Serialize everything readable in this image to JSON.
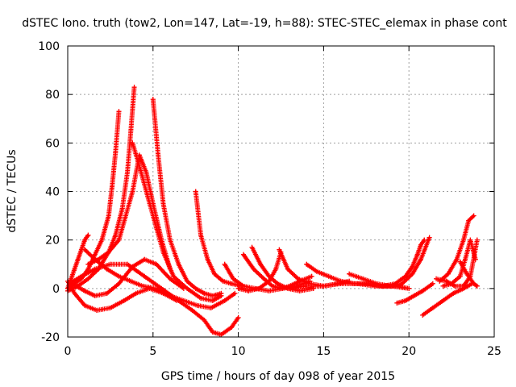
{
  "chart_data": {
    "type": "scatter",
    "title": "dSTEC Iono. truth (tow2, Lon=147, Lat=-19, h=88): STEC-STEC_elemax in phase cont",
    "xlabel": "GPS time / hours of day 098 of year 2015",
    "ylabel": "dSTEC  / TECUs",
    "xlim": [
      0,
      25
    ],
    "ylim": [
      -20,
      100
    ],
    "xticks": [
      "0",
      "5",
      "10",
      "15",
      "20",
      "25"
    ],
    "yticks": [
      "-20",
      "0",
      "20",
      "40",
      "60",
      "80",
      "100"
    ],
    "grid": true,
    "legend": "none",
    "marker": "+",
    "color": "#ff0000",
    "series": [
      {
        "x": [
          0.0,
          0.2,
          0.4,
          0.6,
          0.8,
          1.0,
          1.2
        ],
        "y": [
          0,
          4,
          8,
          12,
          16,
          20,
          22
        ]
      },
      {
        "x": [
          0.0,
          0.4,
          0.8,
          1.2,
          1.6,
          2.0,
          2.4,
          2.6,
          2.8,
          3.0
        ],
        "y": [
          0,
          2,
          4,
          8,
          14,
          20,
          30,
          42,
          56,
          73
        ]
      },
      {
        "x": [
          0.0,
          0.6,
          1.2,
          1.8,
          2.4,
          2.8,
          3.2,
          3.5,
          3.7,
          3.9
        ],
        "y": [
          -1,
          1,
          4,
          8,
          15,
          22,
          33,
          48,
          65,
          83
        ]
      },
      {
        "x": [
          1.2,
          1.8,
          2.4,
          3.0,
          3.4,
          3.8,
          4.2,
          4.6,
          5.0,
          5.5,
          6.0
        ],
        "y": [
          10,
          12,
          15,
          20,
          30,
          40,
          55,
          48,
          35,
          20,
          8
        ]
      },
      {
        "x": [
          5.0,
          5.3,
          5.6,
          6.0,
          6.5,
          7.0,
          7.5,
          8.0,
          8.5,
          9.0
        ],
        "y": [
          78,
          55,
          35,
          20,
          10,
          3,
          0,
          -2,
          -3,
          -2
        ]
      },
      {
        "x": [
          3.8,
          4.3,
          4.8,
          5.2,
          5.6,
          6.2,
          7.0,
          7.8,
          8.5,
          9.0
        ],
        "y": [
          60,
          48,
          35,
          25,
          15,
          5,
          0,
          -4,
          -5,
          -3
        ]
      },
      {
        "x": [
          0.0,
          0.4,
          1.0,
          1.7,
          2.5,
          3.3,
          4.0,
          4.8,
          5.6,
          6.4
        ],
        "y": [
          3,
          -2,
          -7,
          -9,
          -8,
          -5,
          -2,
          0,
          -2,
          -5
        ]
      },
      {
        "x": [
          0.1,
          0.8,
          1.6,
          2.5,
          3.5,
          4.5,
          5.5,
          6.5,
          7.3,
          8.0,
          8.5,
          9.0,
          9.6,
          10.0
        ],
        "y": [
          2,
          5,
          8,
          10,
          10,
          5,
          0,
          -5,
          -9,
          -13,
          -18,
          -19,
          -16,
          -12
        ]
      },
      {
        "x": [
          1.0,
          1.6,
          2.3,
          3.0,
          3.7,
          4.4,
          5.2,
          6.0,
          6.8,
          7.6,
          8.4,
          9.2,
          9.8
        ],
        "y": [
          16,
          12,
          8,
          5,
          3,
          1,
          0,
          -3,
          -5,
          -7,
          -8,
          -5,
          -2
        ]
      },
      {
        "x": [
          0.5,
          1.0,
          1.6,
          2.3,
          3.0,
          3.8,
          4.5,
          5.2,
          6.0,
          6.8
        ],
        "y": [
          1,
          -1,
          -3,
          -2,
          2,
          9,
          12,
          10,
          4,
          0
        ]
      },
      {
        "x": [
          7.5,
          7.8,
          8.2,
          8.6,
          9.1,
          9.6,
          10.2
        ],
        "y": [
          40,
          22,
          12,
          6,
          3,
          2,
          1
        ]
      },
      {
        "x": [
          9.2,
          9.7,
          10.3,
          11.0,
          11.8,
          12.6,
          13.4,
          14.2
        ],
        "y": [
          10,
          4,
          1,
          0,
          -1,
          0,
          1,
          3
        ]
      },
      {
        "x": [
          10.8,
          11.3,
          11.8,
          12.3,
          12.9,
          13.6,
          14.4
        ],
        "y": [
          17,
          10,
          5,
          2,
          0,
          -1,
          0
        ]
      },
      {
        "x": [
          10.3,
          10.9,
          11.5,
          12.0,
          12.5,
          13.0,
          13.6,
          14.3
        ],
        "y": [
          14,
          8,
          4,
          1,
          0,
          1,
          3,
          5
        ]
      },
      {
        "x": [
          10.0,
          10.6,
          11.2,
          11.8,
          12.2,
          12.5
        ],
        "y": [
          0,
          -1,
          0,
          3,
          8,
          15
        ]
      },
      {
        "x": [
          12.4,
          12.9,
          13.5,
          14.2,
          15.0,
          15.8,
          16.5
        ],
        "y": [
          16,
          8,
          4,
          2,
          1,
          2,
          3
        ]
      },
      {
        "x": [
          14.0,
          14.6,
          15.3,
          16.0,
          16.8,
          17.6,
          18.4,
          19.2,
          20.0
        ],
        "y": [
          10,
          7,
          5,
          3,
          2,
          2,
          1,
          1,
          0
        ]
      },
      {
        "x": [
          13.0,
          14.0,
          15.0,
          16.0,
          17.0,
          18.0,
          19.0,
          20.0
        ],
        "y": [
          0,
          1,
          1,
          2,
          2,
          1,
          1,
          0
        ]
      },
      {
        "x": [
          16.5,
          17.3,
          18.1,
          18.9,
          19.6,
          20.2,
          20.7,
          21.2
        ],
        "y": [
          6,
          4,
          2,
          1,
          2,
          6,
          12,
          21
        ]
      },
      {
        "x": [
          18.5,
          19.2,
          19.8,
          20.2,
          20.5,
          20.7,
          20.9
        ],
        "y": [
          1,
          2,
          5,
          9,
          14,
          18,
          20
        ]
      },
      {
        "x": [
          19.3,
          19.8,
          20.3,
          20.8,
          21.4
        ],
        "y": [
          -6,
          -5,
          -3,
          -1,
          2
        ]
      },
      {
        "x": [
          20.8,
          21.4,
          22.0,
          22.6,
          23.2,
          23.7
        ],
        "y": [
          -11,
          -8,
          -5,
          -2,
          0,
          2
        ]
      },
      {
        "x": [
          21.6,
          22.2,
          22.7,
          23.2,
          23.6,
          24.0
        ],
        "y": [
          4,
          3,
          1,
          1,
          5,
          20
        ]
      },
      {
        "x": [
          22.0,
          22.5,
          23.0,
          23.3,
          23.6,
          23.9
        ],
        "y": [
          1,
          2,
          5,
          12,
          20,
          12
        ]
      },
      {
        "x": [
          21.8,
          22.3,
          22.8,
          23.2,
          23.5,
          23.8
        ],
        "y": [
          3,
          6,
          12,
          20,
          28,
          30
        ]
      },
      {
        "x": [
          23.0,
          23.4,
          23.8,
          24.0
        ],
        "y": [
          11,
          6,
          2,
          1
        ]
      }
    ]
  }
}
